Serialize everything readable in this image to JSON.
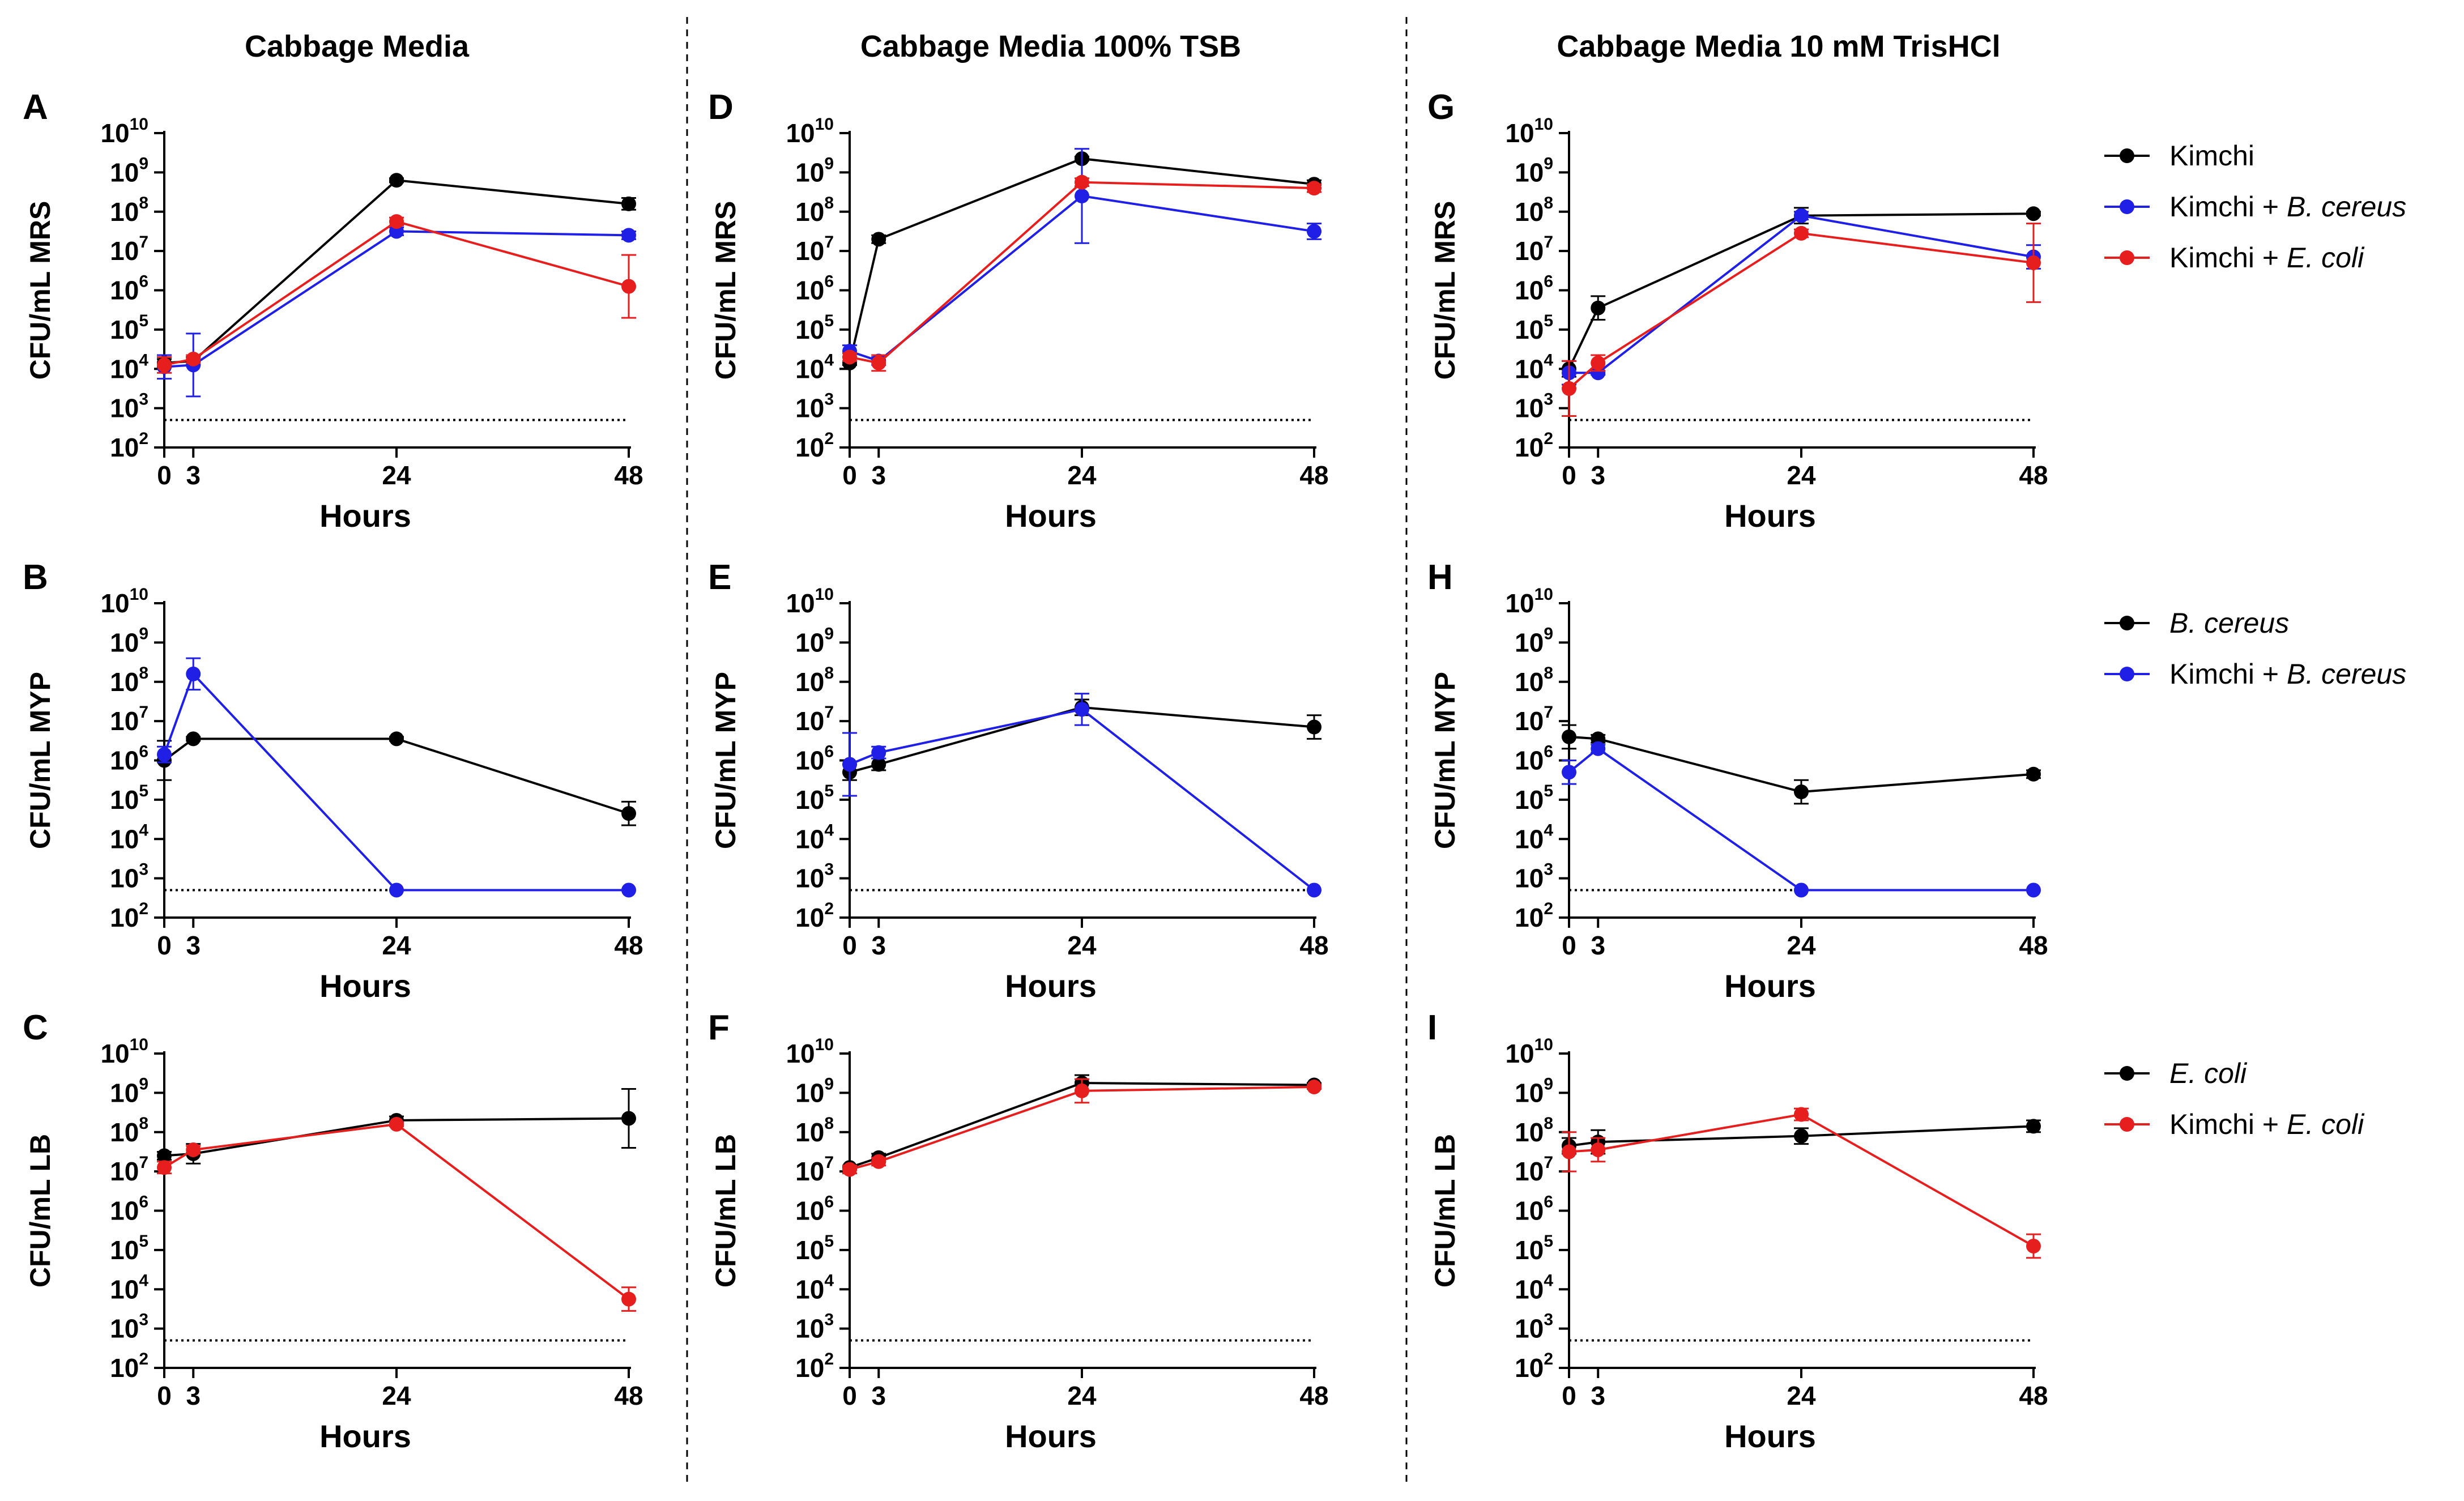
{
  "columns": [
    "Cabbage Media",
    "Cabbage Media 100% TSB",
    "Cabbage Media 10 mM TrisHCl"
  ],
  "colors": {
    "Kimchi": "#000000",
    "Kimchi + B. cereus": "#1f1fe6",
    "Kimchi + E. coli": "#e61e1e",
    "B. cereus": "#000000",
    "E. coli": "#000000"
  },
  "legends": [
    [
      {
        "name": "Kimchi",
        "italic": ""
      },
      {
        "name": "Kimchi + ",
        "italic": "B. cereus"
      },
      {
        "name": "Kimchi + ",
        "italic": "E. coli"
      }
    ],
    [
      {
        "name": "",
        "italic": "B. cereus"
      },
      {
        "name": "Kimchi + ",
        "italic": "B. cereus"
      }
    ],
    [
      {
        "name": "",
        "italic": "E. coli"
      },
      {
        "name": "Kimchi + ",
        "italic": "E. coli"
      }
    ]
  ],
  "chart_data": [
    {
      "panel": "A",
      "type": "line",
      "ylabel": "CFU/mL MRS",
      "xlabel": "Hours",
      "x": [
        0,
        3,
        24,
        48
      ],
      "xticks": [
        "0",
        "3",
        "24",
        "48"
      ],
      "ylim_log10": [
        2,
        10
      ],
      "yticks_base": "10",
      "yticks_exp": [
        "2",
        "3",
        "4",
        "5",
        "6",
        "7",
        "8",
        "9",
        "10"
      ],
      "detection_limit_log10": 2.7,
      "series": [
        {
          "name": "Kimchi",
          "color": "#000000",
          "log10_values": [
            4.15,
            4.2,
            8.8,
            8.2
          ],
          "err": [
            0.1,
            0.1,
            0.05,
            0.15
          ]
        },
        {
          "name": "Kimchi + B. cereus",
          "color": "#1f1fe6",
          "log10_values": [
            4.05,
            4.1,
            7.5,
            7.4
          ],
          "err": [
            0.3,
            0.8,
            0.1,
            0.1
          ]
        },
        {
          "name": "Kimchi + E. coli",
          "color": "#e61e1e",
          "log10_values": [
            4.1,
            4.25,
            7.75,
            6.1
          ],
          "err": [
            0.2,
            0.1,
            0.1,
            0.8
          ]
        }
      ]
    },
    {
      "panel": "B",
      "type": "line",
      "ylabel": "CFU/mL MYP",
      "xlabel": "Hours",
      "x": [
        0,
        3,
        24,
        48
      ],
      "xticks": [
        "0",
        "3",
        "24",
        "48"
      ],
      "ylim_log10": [
        2,
        10
      ],
      "yticks_base": "10",
      "yticks_exp": [
        "2",
        "3",
        "4",
        "5",
        "6",
        "7",
        "8",
        "9",
        "10"
      ],
      "detection_limit_log10": 2.7,
      "series": [
        {
          "name": "B. cereus",
          "color": "#000000",
          "log10_values": [
            6.0,
            6.55,
            6.55,
            4.65
          ],
          "err": [
            0.5,
            0.05,
            0.05,
            0.3
          ]
        },
        {
          "name": "Kimchi + B. cereus",
          "color": "#1f1fe6",
          "log10_values": [
            6.15,
            8.2,
            2.7,
            2.7
          ],
          "err": [
            0.2,
            0.4,
            0,
            0
          ]
        }
      ]
    },
    {
      "panel": "C",
      "type": "line",
      "ylabel": "CFU/mL LB",
      "xlabel": "Hours",
      "x": [
        0,
        3,
        24,
        48
      ],
      "xticks": [
        "0",
        "3",
        "24",
        "48"
      ],
      "ylim_log10": [
        2,
        10
      ],
      "yticks_base": "10",
      "yticks_exp": [
        "2",
        "3",
        "4",
        "5",
        "6",
        "7",
        "8",
        "9",
        "10"
      ],
      "detection_limit_log10": 2.7,
      "series": [
        {
          "name": "E. coli",
          "color": "#000000",
          "log10_values": [
            7.4,
            7.45,
            8.3,
            8.35
          ],
          "err": [
            0.1,
            0.25,
            0.1,
            0.75
          ]
        },
        {
          "name": "Kimchi + E. coli",
          "color": "#e61e1e",
          "log10_values": [
            7.1,
            7.55,
            8.2,
            3.75
          ],
          "err": [
            0.15,
            0.1,
            0.05,
            0.3
          ]
        }
      ]
    },
    {
      "panel": "D",
      "type": "line",
      "ylabel": "CFU/mL MRS",
      "xlabel": "Hours",
      "x": [
        0,
        3,
        24,
        48
      ],
      "xticks": [
        "0",
        "3",
        "24",
        "48"
      ],
      "ylim_log10": [
        2,
        10
      ],
      "yticks_base": "10",
      "yticks_exp": [
        "2",
        "3",
        "4",
        "5",
        "6",
        "7",
        "8",
        "9",
        "10"
      ],
      "detection_limit_log10": 2.7,
      "series": [
        {
          "name": "Kimchi",
          "color": "#000000",
          "log10_values": [
            4.15,
            7.3,
            9.35,
            8.7
          ],
          "err": [
            0.05,
            0.1,
            0.05,
            0.1
          ]
        },
        {
          "name": "Kimchi + B. cereus",
          "color": "#1f1fe6",
          "log10_values": [
            4.45,
            4.2,
            8.4,
            7.5
          ],
          "err": [
            0.15,
            0.1,
            1.2,
            0.2
          ]
        },
        {
          "name": "Kimchi + E. coli",
          "color": "#e61e1e",
          "log10_values": [
            4.3,
            4.15,
            8.75,
            8.6
          ],
          "err": [
            0.1,
            0.2,
            0.1,
            0.1
          ]
        }
      ]
    },
    {
      "panel": "E",
      "type": "line",
      "ylabel": "CFU/mL MYP",
      "xlabel": "Hours",
      "x": [
        0,
        3,
        24,
        48
      ],
      "xticks": [
        "0",
        "3",
        "24",
        "48"
      ],
      "ylim_log10": [
        2,
        10
      ],
      "yticks_base": "10",
      "yticks_exp": [
        "2",
        "3",
        "4",
        "5",
        "6",
        "7",
        "8",
        "9",
        "10"
      ],
      "detection_limit_log10": 2.7,
      "series": [
        {
          "name": "B. cereus",
          "color": "#000000",
          "log10_values": [
            5.7,
            5.9,
            7.35,
            6.85
          ],
          "err": [
            0.2,
            0.15,
            0.2,
            0.3
          ]
        },
        {
          "name": "Kimchi + B. cereus",
          "color": "#1f1fe6",
          "log10_values": [
            5.9,
            6.2,
            7.3,
            2.7
          ],
          "err": [
            0.8,
            0.15,
            0.4,
            0
          ]
        }
      ]
    },
    {
      "panel": "F",
      "type": "line",
      "ylabel": "CFU/mL LB",
      "xlabel": "Hours",
      "x": [
        0,
        3,
        24,
        48
      ],
      "xticks": [
        "0",
        "3",
        "24",
        "48"
      ],
      "ylim_log10": [
        2,
        10
      ],
      "yticks_base": "10",
      "yticks_exp": [
        "2",
        "3",
        "4",
        "5",
        "6",
        "7",
        "8",
        "9",
        "10"
      ],
      "detection_limit_log10": 2.7,
      "series": [
        {
          "name": "E. coli",
          "color": "#000000",
          "log10_values": [
            7.1,
            7.35,
            9.25,
            9.2
          ],
          "err": [
            0.05,
            0.1,
            0.2,
            0.05
          ]
        },
        {
          "name": "Kimchi + E. coli",
          "color": "#e61e1e",
          "log10_values": [
            7.05,
            7.25,
            9.05,
            9.15
          ],
          "err": [
            0.1,
            0.1,
            0.3,
            0.05
          ]
        }
      ]
    },
    {
      "panel": "G",
      "type": "line",
      "ylabel": "CFU/mL MRS",
      "xlabel": "Hours",
      "x": [
        0,
        3,
        24,
        48
      ],
      "xticks": [
        "0",
        "3",
        "24",
        "48"
      ],
      "ylim_log10": [
        2,
        10
      ],
      "yticks_base": "10",
      "yticks_exp": [
        "2",
        "3",
        "4",
        "5",
        "6",
        "7",
        "8",
        "9",
        "10"
      ],
      "detection_limit_log10": 2.7,
      "series": [
        {
          "name": "Kimchi",
          "color": "#000000",
          "log10_values": [
            4.0,
            5.55,
            7.9,
            7.95
          ],
          "err": [
            0.2,
            0.3,
            0.2,
            0.05
          ]
        },
        {
          "name": "Kimchi + B. cereus",
          "color": "#1f1fe6",
          "log10_values": [
            3.9,
            3.9,
            7.9,
            6.85
          ],
          "err": [
            0.3,
            0.05,
            0.1,
            0.3
          ]
        },
        {
          "name": "Kimchi + E. coli",
          "color": "#e61e1e",
          "log10_values": [
            3.5,
            4.15,
            7.45,
            6.7
          ],
          "err": [
            0.7,
            0.2,
            0.1,
            1.0
          ]
        }
      ]
    },
    {
      "panel": "H",
      "type": "line",
      "ylabel": "CFU/mL MYP",
      "xlabel": "Hours",
      "x": [
        0,
        3,
        24,
        48
      ],
      "xticks": [
        "0",
        "3",
        "24",
        "48"
      ],
      "ylim_log10": [
        2,
        10
      ],
      "yticks_base": "10",
      "yticks_exp": [
        "2",
        "3",
        "4",
        "5",
        "6",
        "7",
        "8",
        "9",
        "10"
      ],
      "detection_limit_log10": 2.7,
      "series": [
        {
          "name": "B. cereus",
          "color": "#000000",
          "log10_values": [
            6.6,
            6.55,
            5.2,
            5.65
          ],
          "err": [
            0.3,
            0.1,
            0.3,
            0.1
          ]
        },
        {
          "name": "Kimchi + B. cereus",
          "color": "#1f1fe6",
          "log10_values": [
            5.7,
            6.3,
            2.7,
            2.7
          ],
          "err": [
            0.3,
            0.1,
            0,
            0
          ]
        }
      ]
    },
    {
      "panel": "I",
      "type": "line",
      "ylabel": "CFU/mL LB",
      "xlabel": "Hours",
      "x": [
        0,
        3,
        24,
        48
      ],
      "xticks": [
        "0",
        "3",
        "24",
        "48"
      ],
      "ylim_log10": [
        2,
        10
      ],
      "yticks_base": "10",
      "yticks_exp": [
        "2",
        "3",
        "4",
        "5",
        "6",
        "7",
        "8",
        "9",
        "10"
      ],
      "detection_limit_log10": 2.7,
      "series": [
        {
          "name": "E. coli",
          "color": "#000000",
          "log10_values": [
            7.65,
            7.75,
            7.9,
            8.15
          ],
          "err": [
            0.2,
            0.3,
            0.2,
            0.15
          ]
        },
        {
          "name": "Kimchi + E. coli",
          "color": "#e61e1e",
          "log10_values": [
            7.5,
            7.55,
            8.45,
            5.1
          ],
          "err": [
            0.5,
            0.3,
            0.15,
            0.3
          ]
        }
      ]
    }
  ]
}
